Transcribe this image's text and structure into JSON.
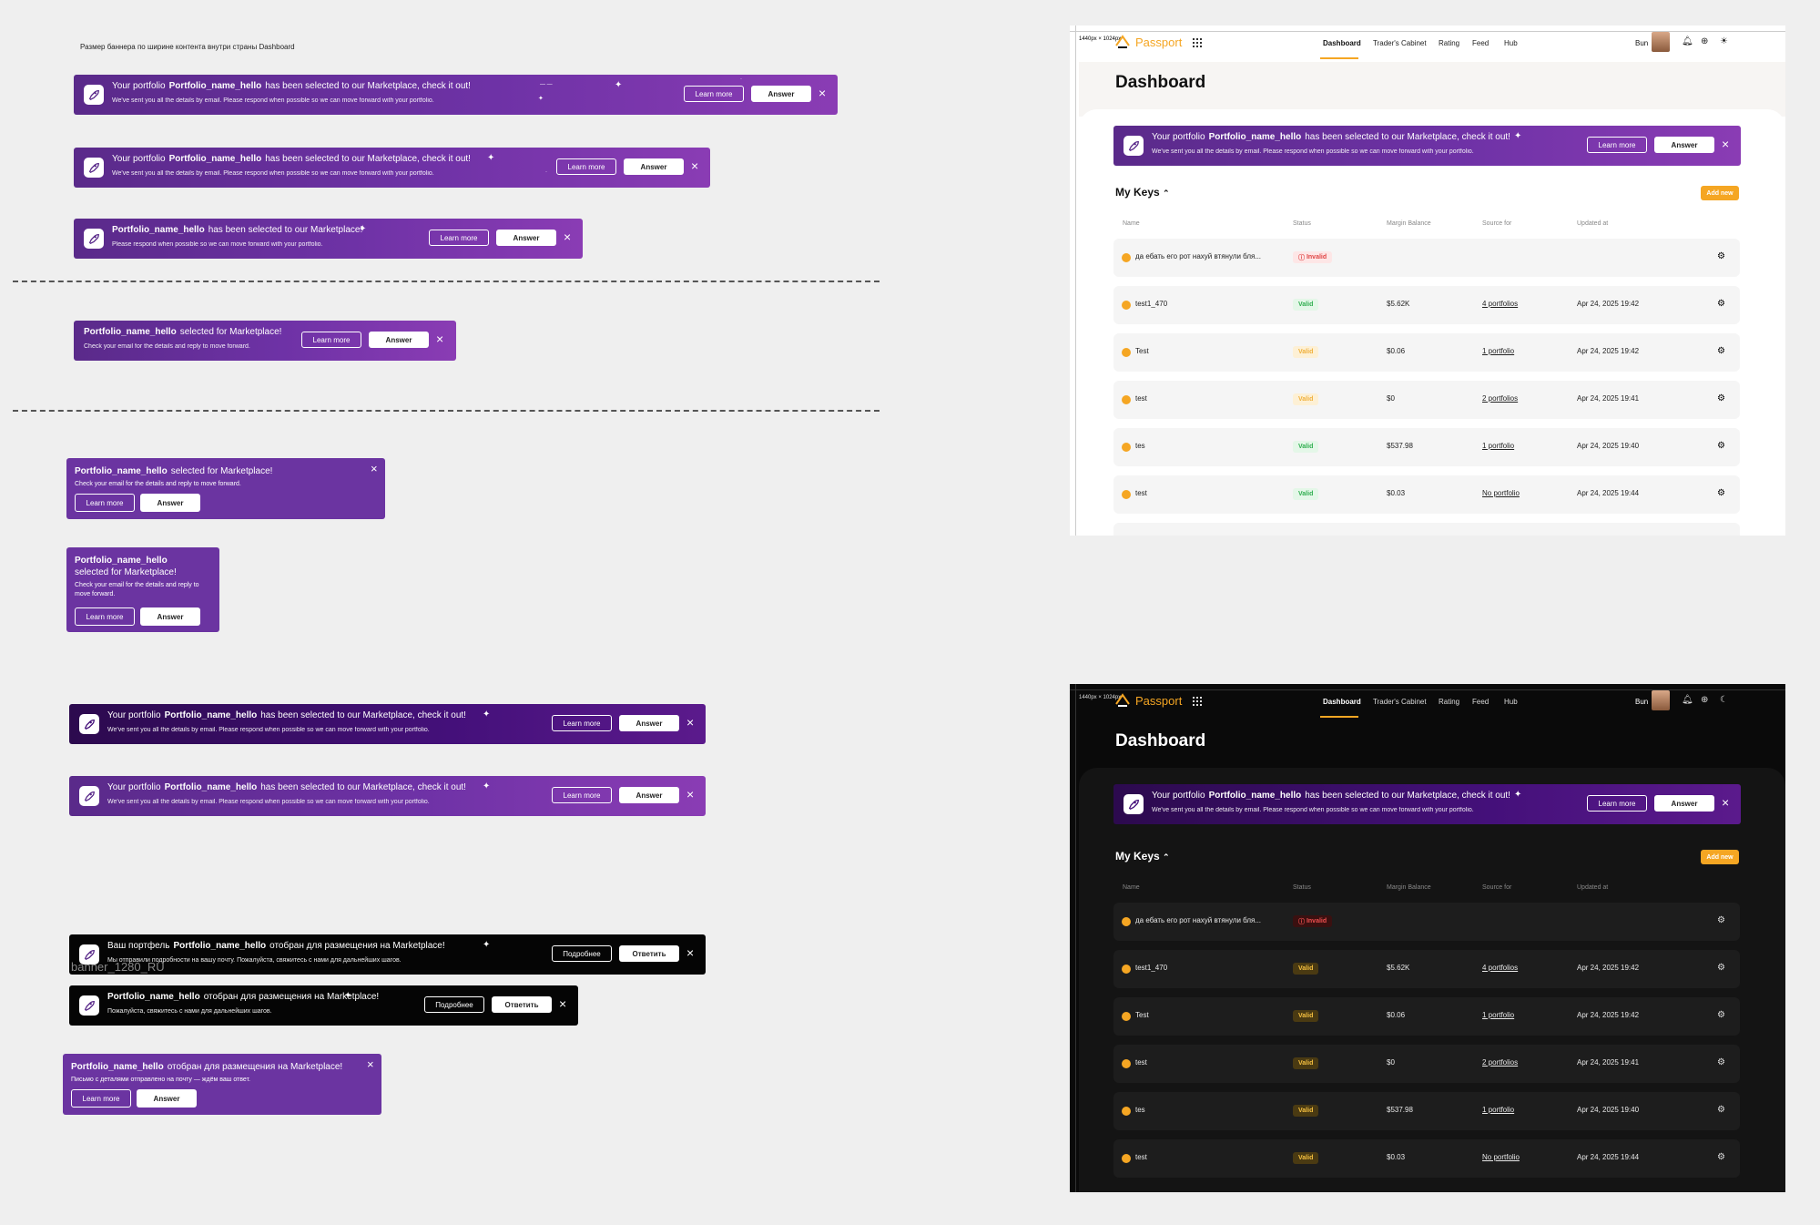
{
  "page": {
    "header_note": "Размер баннера по ширине контента внутри страны Dashboard",
    "ghost_label": "banner_1280_RU"
  },
  "colors": {
    "purple": "#6b34a1",
    "dark_purple": "#44107a",
    "accent": "#f5a623",
    "valid": "#2fae4f",
    "invalid": "#e04545"
  },
  "icons": {
    "banner": "rocket-icon",
    "close": "close-icon",
    "settings": "gear-icon",
    "apps": "grid-icon",
    "notifications": "bell-icon",
    "language": "globe-icon",
    "theme_light": "sun-icon",
    "theme_dark": "moon-icon"
  },
  "banner_en": {
    "prefix": "Your portfolio",
    "name": "Portfolio_name_hello",
    "suffix": "has been selected to our Marketplace, check it out!",
    "sub": "We've sent you all the details by email. Please respond when possible so we can move forward with your portfolio.",
    "suffix_short": "has been selected to our Marketplace!",
    "sub_short": "Please respond when possible so we can move forward with your portfolio.",
    "suffix_tiny": "selected for Marketplace!",
    "sub_tiny": "Check your email for the details and reply to move forward.",
    "learn_more": "Learn more",
    "answer": "Answer",
    "close": "×"
  },
  "banner_ru": {
    "prefix": "Ваш портфель",
    "name": "Portfolio_name_hello",
    "suffix": "отобран для размещения на Marketplace!",
    "sub": "Мы отправили подробности на вашу почту. Пожалуйста, свяжитесь с нами для дальнейших шагов.",
    "sub_short": "Пожалуйста, свяжитесь с нами для дальнейших шагов.",
    "sub_tiny": "Письмо с деталями отправлено на почту — ждём ваш ответ.",
    "learn_more": "Подробнее",
    "answer": "Ответить",
    "learn_more_en": "Learn more",
    "answer_en": "Answer"
  },
  "app": {
    "frame_label": "1440px × 1024px",
    "logo": "Passport",
    "nav": [
      "Dashboard",
      "Trader's Cabinet",
      "Rating",
      "Feed",
      "Hub"
    ],
    "user": "Bun",
    "title": "Dashboard",
    "section": "My Keys",
    "add_new": "Add new",
    "columns": [
      "Name",
      "Status",
      "Margin Balance",
      "Source for",
      "Updated at"
    ],
    "rows": [
      {
        "name": "да ебать его рот нахуй втянули бля...",
        "status": "Invalid",
        "balance": "",
        "source": "",
        "updated": ""
      },
      {
        "name": "test1_470",
        "status": "Valid",
        "balance": "$5.62K",
        "source": "4 portfolios",
        "updated": "Apr 24, 2025 19:42"
      },
      {
        "name": "Test",
        "status": "Valid",
        "balance": "$0.06",
        "source": "1 portfolio",
        "updated": "Apr 24, 2025 19:42"
      },
      {
        "name": "test",
        "status": "Valid",
        "balance": "$0",
        "source": "2 portfolios",
        "updated": "Apr 24, 2025 19:41"
      },
      {
        "name": "tes",
        "status": "Valid",
        "balance": "$537.98",
        "source": "1 portfolio",
        "updated": "Apr 24, 2025 19:40"
      },
      {
        "name": "test",
        "status": "Valid",
        "balance": "$0.03",
        "source": "No portfolio",
        "updated": "Apr 24, 2025 19:44"
      }
    ]
  }
}
